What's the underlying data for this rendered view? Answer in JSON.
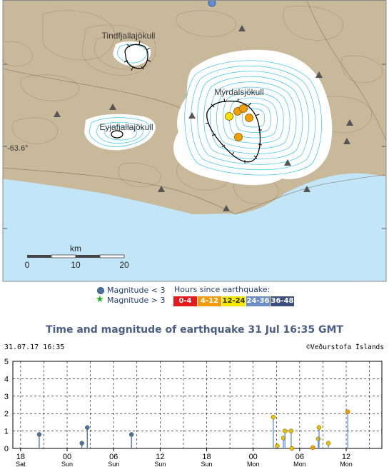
{
  "map": {
    "place_labels": [
      "Tindfjallajökull",
      "Mýrdalsjökull",
      "Eyjafjallajökull"
    ],
    "lat_label": "-63.6°",
    "scale": {
      "title": "km",
      "ticks": [
        "0",
        "10",
        "20"
      ]
    },
    "colors": {
      "land": "#c9b99b",
      "sea": "#c2e6f7",
      "ice": "#ffffff",
      "ice_contour": "#35c3ea",
      "land_contour": "#a08a6b"
    },
    "quakes": [
      {
        "hours": "12-24",
        "color": "#f5e200"
      },
      {
        "hours": "4-12",
        "color": "#f0a000"
      },
      {
        "hours": "4-12",
        "color": "#f0a000"
      },
      {
        "hours": "4-12",
        "color": "#f0a000"
      },
      {
        "hours": "4-12",
        "color": "#f0a000"
      }
    ]
  },
  "legend": {
    "mag_small": "Magnitude < 3",
    "mag_large": "Magnitude > 3",
    "hours_title": "Hours since earthquake:",
    "hours_bins": [
      {
        "label": "0-4",
        "color": "#e41a1c"
      },
      {
        "label": "4-12",
        "color": "#f19a0b"
      },
      {
        "label": "12-24",
        "color": "#f5e600",
        "text_color": "#333333"
      },
      {
        "label": "24-36",
        "color": "#6b8fc4"
      },
      {
        "label": "36-48",
        "color": "#3d4f7c"
      }
    ]
  },
  "title": "Time and magnitude of earthquake   31 Jul 16:35 GMT",
  "timestamp": "31.07.17 16:35",
  "credit": "©Veðurstofa Íslands",
  "chart_data": {
    "type": "scatter",
    "title": "Time and magnitude of earthquake   31 Jul 16:35 GMT",
    "xlabel": "",
    "ylabel": "",
    "ylim": [
      0,
      5
    ],
    "yticks": [
      "0",
      "1",
      "2",
      "3",
      "4",
      "5"
    ],
    "xticks": [
      {
        "hour": "18",
        "day": "Sat",
        "h": 18
      },
      {
        "hour": "00",
        "day": "Sun",
        "h": 24
      },
      {
        "hour": "06",
        "day": "Sun",
        "h": 30
      },
      {
        "hour": "12",
        "day": "Sun",
        "h": 36
      },
      {
        "hour": "18",
        "day": "Sun",
        "h": 42
      },
      {
        "hour": "00",
        "day": "Mon",
        "h": 48
      },
      {
        "hour": "06",
        "day": "Mon",
        "h": 54
      },
      {
        "hour": "12",
        "day": "Mon",
        "h": 60
      }
    ],
    "xlim_hours": [
      17.0,
      64.6
    ],
    "grid": true,
    "series": [
      {
        "name": "Magnitude < 3",
        "points": [
          {
            "t": 20.4,
            "m": 0.8,
            "color": "#4a6fa5"
          },
          {
            "t": 25.9,
            "m": 0.3,
            "color": "#4a6fa5"
          },
          {
            "t": 26.6,
            "m": 1.2,
            "color": "#4a6fa5"
          },
          {
            "t": 32.3,
            "m": 0.8,
            "color": "#4a6fa5"
          },
          {
            "t": 50.6,
            "m": 1.8,
            "color": "#e8c000"
          },
          {
            "t": 51.1,
            "m": 0.15,
            "color": "#e8c000"
          },
          {
            "t": 51.9,
            "m": 0.6,
            "color": "#e8c000"
          },
          {
            "t": 52.1,
            "m": 1.0,
            "color": "#e8c000"
          },
          {
            "t": 52.9,
            "m": 1.0,
            "color": "#e8c000"
          },
          {
            "t": 53.0,
            "m": 0.0,
            "color": "#e8c000"
          },
          {
            "t": 55.7,
            "m": 0.05,
            "color": "#f0a000"
          },
          {
            "t": 56.4,
            "m": 0.55,
            "color": "#e8c000"
          },
          {
            "t": 56.5,
            "m": 1.2,
            "color": "#e8c000"
          },
          {
            "t": 57.7,
            "m": 0.3,
            "color": "#e8c000"
          },
          {
            "t": 60.2,
            "m": 2.1,
            "color": "#f0a000"
          }
        ]
      }
    ]
  }
}
